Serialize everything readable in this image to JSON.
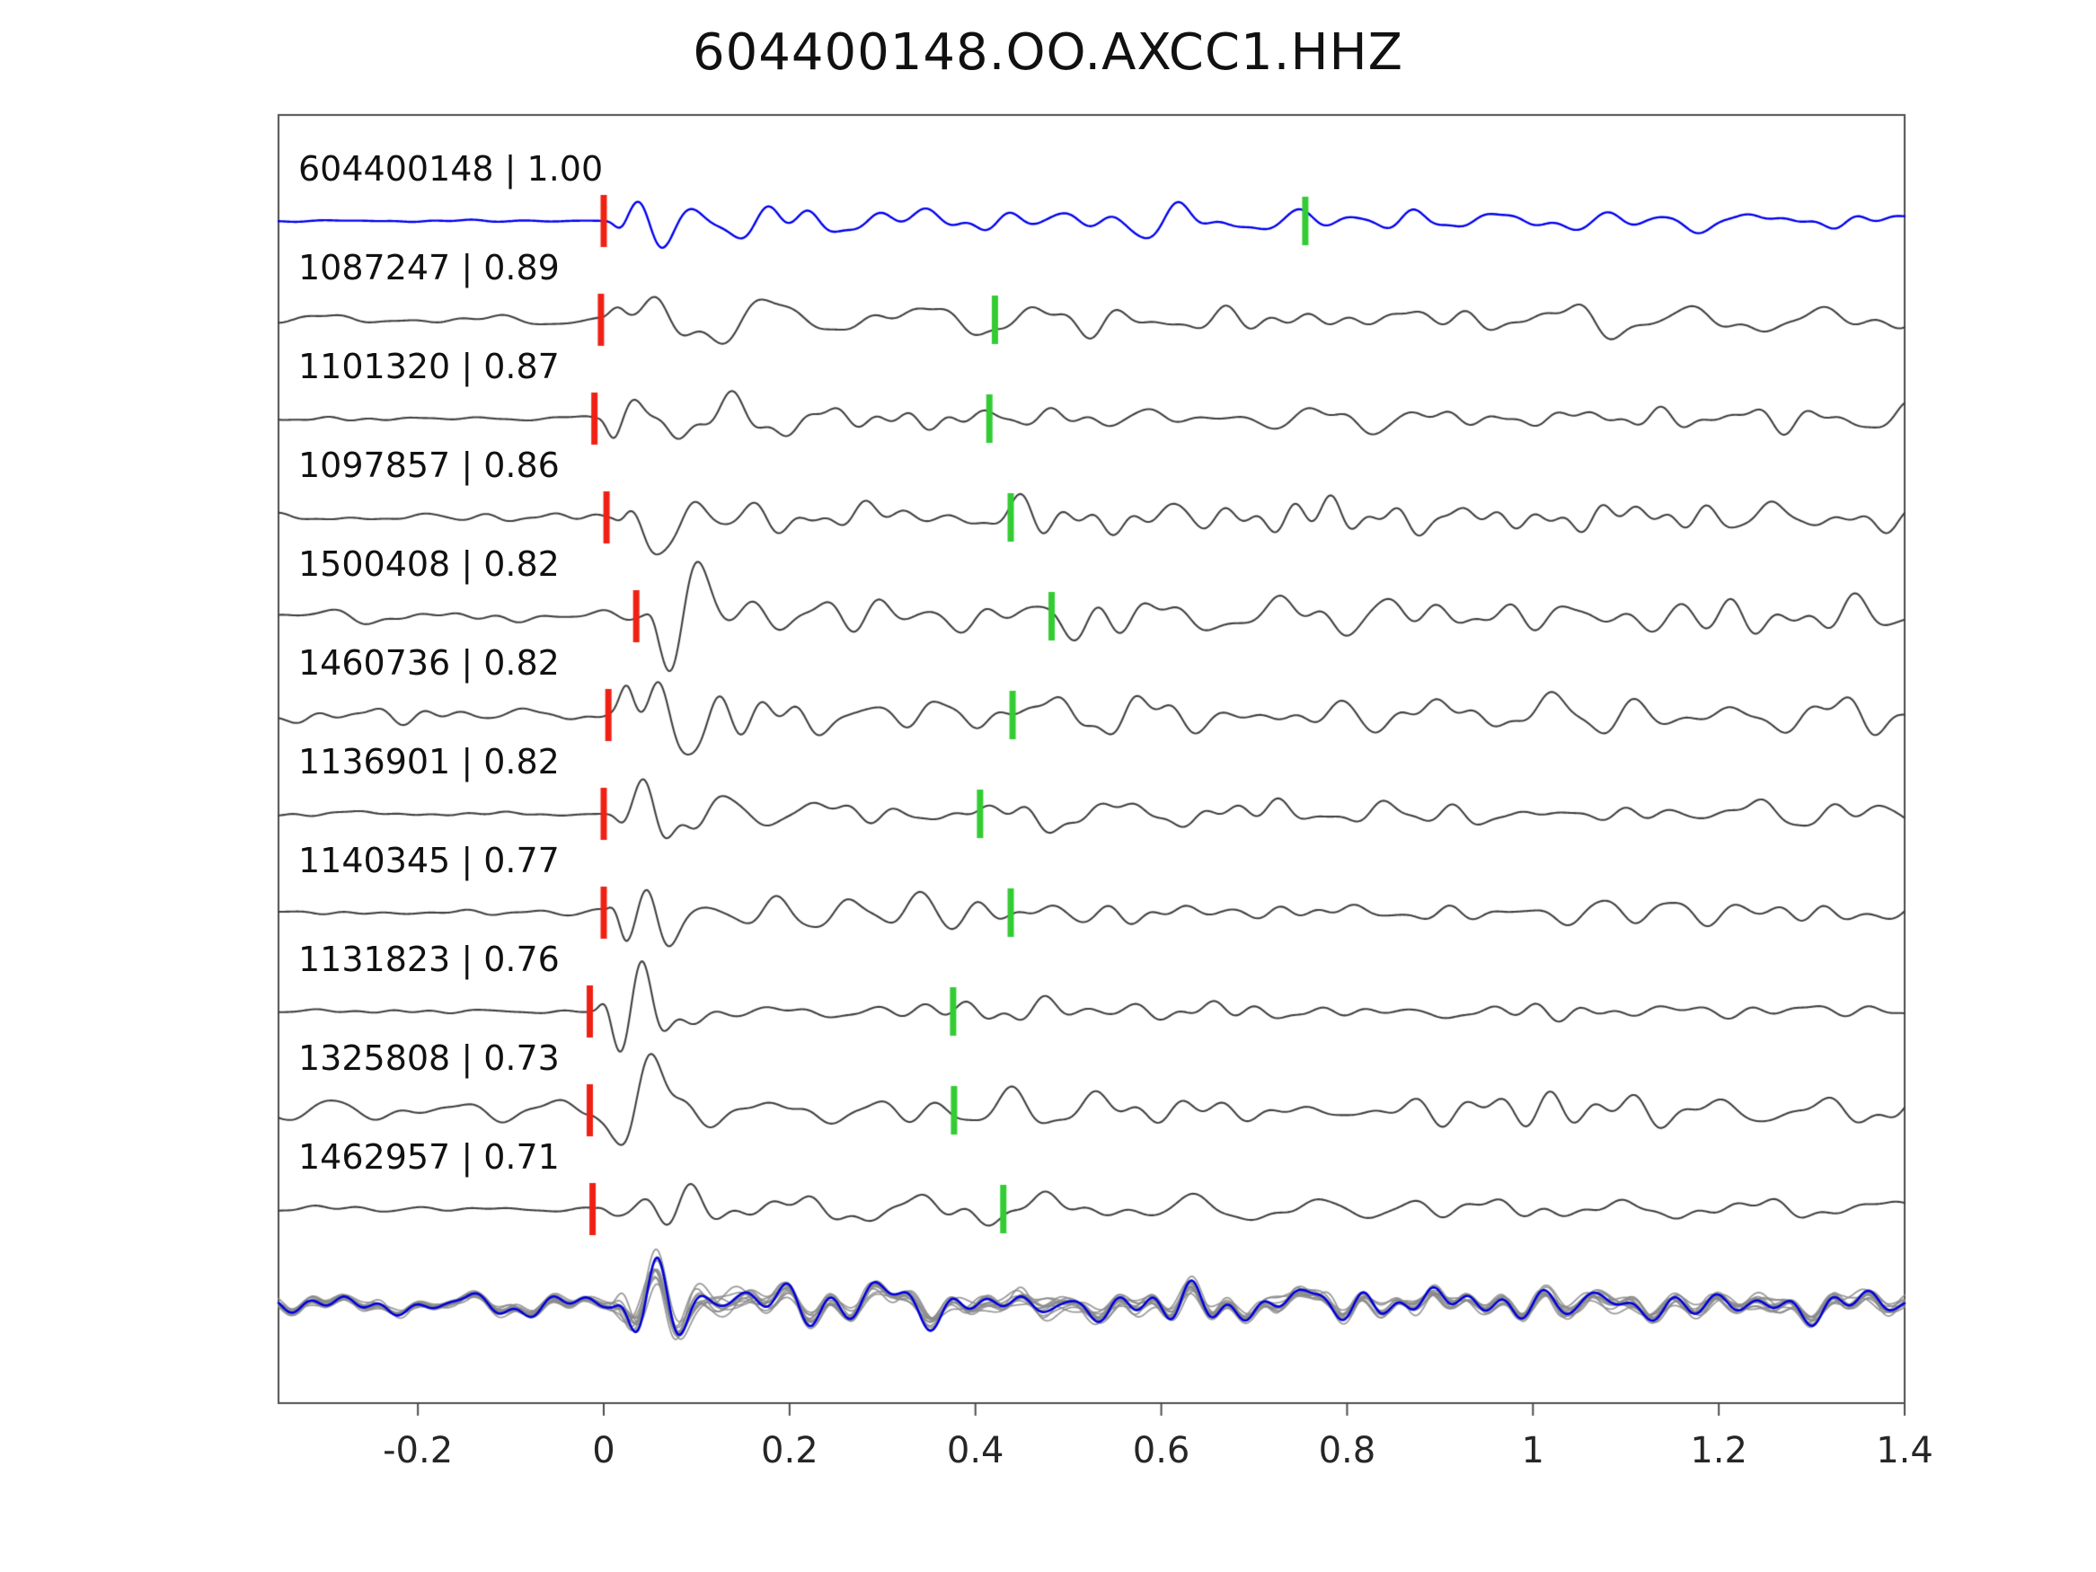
{
  "colors": {
    "reference": "#0000ee",
    "trace": "#3f3f3f",
    "pick_red": "#ef2114",
    "pick_green": "#33cc33",
    "overlay_member": "#8a8a8a",
    "overlay_stack": "#0000dd",
    "axis": "#4c4c4c",
    "text": "#111111"
  },
  "chart_data": {
    "type": "line",
    "title": "604400148.OO.AXCC1.HHZ",
    "xlabel": "",
    "ylabel": "",
    "x_range": [
      -0.35,
      1.4
    ],
    "x_ticks": [
      {
        "value": -0.2,
        "label": "-0.2"
      },
      {
        "value": 0,
        "label": "0"
      },
      {
        "value": 0.2,
        "label": "0.2"
      },
      {
        "value": 0.4,
        "label": "0.4"
      },
      {
        "value": 0.6,
        "label": "0.6"
      },
      {
        "value": 0.8,
        "label": "0.8"
      },
      {
        "value": 1,
        "label": "1"
      },
      {
        "value": 1.2,
        "label": "1.2"
      },
      {
        "value": 1.4,
        "label": "1.4"
      }
    ],
    "description": "Template waveform matching: reference event 604400148 (blue) and 10 matched detections (gray), each with a red P-pick near t=0 and a green secondary pick; bottom row overlays all aligned traces (gray) with the blue stacked reference.",
    "traces": [
      {
        "id": "604400148",
        "correlation": 1.0,
        "label": "604400148 | 1.00",
        "role": "reference",
        "red_pick_x": 0.0,
        "green_pick_x": 0.755,
        "pre_noise": 0.03,
        "burst": 1.05,
        "coda": 0.4,
        "seed": 11
      },
      {
        "id": "1087247",
        "correlation": 0.89,
        "label": "1087247 | 0.89",
        "role": "match",
        "red_pick_x": -0.003,
        "green_pick_x": 0.421,
        "pre_noise": 0.13,
        "burst": 1.0,
        "coda": 0.42,
        "seed": 22
      },
      {
        "id": "1101320",
        "correlation": 0.87,
        "label": "1101320 | 0.87",
        "role": "match",
        "red_pick_x": -0.01,
        "green_pick_x": 0.415,
        "pre_noise": 0.11,
        "burst": 1.05,
        "coda": 0.42,
        "seed": 33
      },
      {
        "id": "1097857",
        "correlation": 0.86,
        "label": "1097857 | 0.86",
        "role": "match",
        "red_pick_x": 0.003,
        "green_pick_x": 0.438,
        "pre_noise": 0.13,
        "burst": 1.0,
        "coda": 0.44,
        "seed": 44
      },
      {
        "id": "1500408",
        "correlation": 0.82,
        "label": "1500408 | 0.82",
        "role": "match",
        "red_pick_x": 0.035,
        "green_pick_x": 0.482,
        "pre_noise": 0.22,
        "burst": 0.95,
        "coda": 0.46,
        "seed": 55
      },
      {
        "id": "1460736",
        "correlation": 0.82,
        "label": "1460736 | 0.82",
        "role": "match",
        "red_pick_x": 0.005,
        "green_pick_x": 0.44,
        "pre_noise": 0.2,
        "burst": 1.0,
        "coda": 0.46,
        "seed": 66
      },
      {
        "id": "1136901",
        "correlation": 0.82,
        "label": "1136901 | 0.82",
        "role": "match",
        "red_pick_x": 0.0,
        "green_pick_x": 0.405,
        "pre_noise": 0.07,
        "burst": 1.05,
        "coda": 0.36,
        "seed": 77
      },
      {
        "id": "1140345",
        "correlation": 0.77,
        "label": "1140345 | 0.77",
        "role": "match",
        "red_pick_x": 0.0,
        "green_pick_x": 0.438,
        "pre_noise": 0.08,
        "burst": 1.0,
        "coda": 0.38,
        "seed": 88
      },
      {
        "id": "1131823",
        "correlation": 0.76,
        "label": "1131823 | 0.76",
        "role": "match",
        "red_pick_x": -0.015,
        "green_pick_x": 0.376,
        "pre_noise": 0.05,
        "burst": 1.0,
        "coda": 0.3,
        "seed": 99
      },
      {
        "id": "1325808",
        "correlation": 0.73,
        "label": "1325808 | 0.73",
        "role": "match",
        "red_pick_x": -0.015,
        "green_pick_x": 0.377,
        "pre_noise": 0.24,
        "burst": 1.0,
        "coda": 0.44,
        "seed": 110
      },
      {
        "id": "1462957",
        "correlation": 0.71,
        "label": "1462957 | 0.71",
        "role": "match",
        "red_pick_x": -0.012,
        "green_pick_x": 0.43,
        "pre_noise": 0.09,
        "burst": 0.95,
        "coda": 0.32,
        "seed": 121
      }
    ],
    "overlay": {
      "member_count": 11,
      "seed": 777,
      "pre_noise": 0.3,
      "burst": 0.85,
      "coda": 0.42
    }
  }
}
